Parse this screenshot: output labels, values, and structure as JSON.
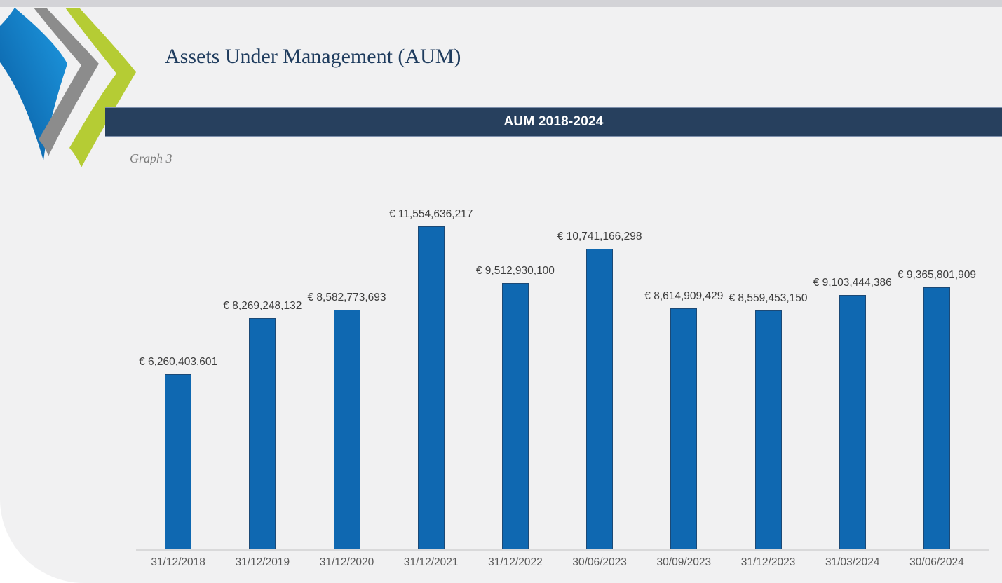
{
  "page": {
    "title": "Assets Under Management (AUM)",
    "section_banner": "AUM 2018-2024",
    "caption": "Graph 3",
    "background_color": "#f1f1f2",
    "banner_color": "#27405e",
    "logo": {
      "icon": "triple-chevron-logo",
      "colors": {
        "blue": "#0d6cb7",
        "gray": "#8c8c8c",
        "green": "#b5cc34"
      }
    }
  },
  "chart_data": {
    "type": "bar",
    "title": "AUM 2018-2024",
    "categories": [
      "31/12/2018",
      "31/12/2019",
      "31/12/2020",
      "31/12/2021",
      "31/12/2022",
      "30/06/2023",
      "30/09/2023",
      "31/12/2023",
      "31/03/2024",
      "30/06/2024"
    ],
    "values": [
      6260403601,
      8269248132,
      8582773693,
      11554636217,
      9512930100,
      10741166298,
      8614909429,
      8559453150,
      9103444386,
      9365801909
    ],
    "value_labels": [
      "€ 6,260,403,601",
      "€ 8,269,248,132",
      "€ 8,582,773,693",
      "€ 11,554,636,217",
      "€ 9,512,930,100",
      "€ 10,741,166,298",
      "€ 8,614,909,429",
      "€ 8,559,453,150",
      "€ 9,103,444,386",
      "€ 9,365,801,909"
    ],
    "currency": "€",
    "xlabel": "",
    "ylabel": "",
    "ylim": [
      0,
      11554636217
    ],
    "grid": false,
    "legend_position": "none",
    "bar_color": "#0f68b1",
    "bar_border_color": "#1b4976",
    "axis_line_color": "#d9d9da"
  }
}
